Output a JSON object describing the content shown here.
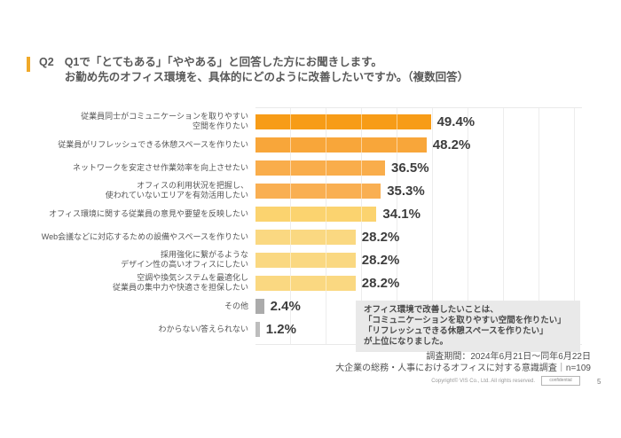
{
  "header": {
    "question_id": "Q2",
    "title_lines": [
      "Q1で「とてもある」「ややある」と回答した方にお聞きします。",
      "お勤め先のオフィス環境を、具体的にどのように改善したいですか。（複数回答）"
    ],
    "accent_color": "#F0A929"
  },
  "chart_data": {
    "type": "bar",
    "orientation": "horizontal",
    "unit": "%",
    "axis_max": 100,
    "gridline_interval_percent": 10,
    "grid": true,
    "categories": [
      [
        "従業員同士がコミュニケーションを取りやすい",
        "空間を作りたい"
      ],
      [
        "従業員がリフレッシュできる休憩スペースを作りたい"
      ],
      [
        "ネットワークを安定させ作業効率を向上させたい"
      ],
      [
        "オフィスの利用状況を把握し、",
        "使われていないエリアを有効活用したい"
      ],
      [
        "オフィス環境に関する従業員の意見や要望を反映したい"
      ],
      [
        "Web会議などに対応するための設備やスペースを作りたい"
      ],
      [
        "採用強化に繋がるような",
        "デザイン性の高いオフィスにしたい"
      ],
      [
        "空調や換気システムを最適化し",
        "従業員の集中力や快適さを担保したい"
      ],
      [
        "その他"
      ],
      [
        "わからない/答えられない"
      ]
    ],
    "values": [
      49.4,
      48.2,
      36.5,
      35.3,
      34.1,
      28.2,
      28.2,
      28.2,
      2.4,
      1.2
    ],
    "value_labels": [
      "49.4%",
      "48.2%",
      "36.5%",
      "35.3%",
      "34.1%",
      "28.2%",
      "28.2%",
      "28.2%",
      "2.4%",
      "1.2%"
    ],
    "bar_colors": [
      "#F79C17",
      "#F8A63A",
      "#F9AD4B",
      "#F9AF52",
      "#FBD36F",
      "#FAD881",
      "#FAD881",
      "#FAD881",
      "#ABABAB",
      "#BDBDBD"
    ]
  },
  "note": {
    "lines": [
      "オフィス環境で改善したいことは、",
      "「コミュニケーションを取りやすい空間を作りたい」",
      "「リフレッシュできる休憩スペースを作りたい」",
      "が上位になりました。"
    ],
    "background": "#E9E9E9"
  },
  "survey": {
    "lines": [
      "調査期間：2024年6月21日～同年6月22日",
      "大企業の総務・人事におけるオフィスに対する意識調査｜n=109"
    ]
  },
  "footer": {
    "copyright": "Copyright© VIS Co., Ltd. All rights reserved.",
    "confidential_label": "confidential",
    "page_number": "5"
  }
}
